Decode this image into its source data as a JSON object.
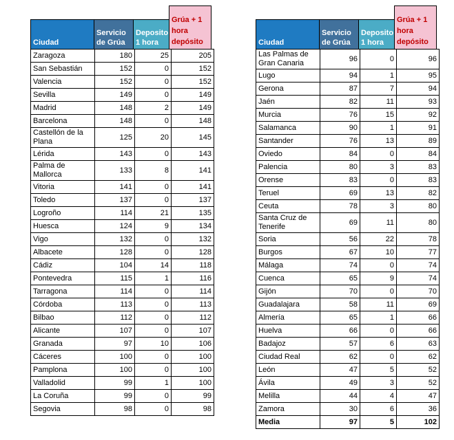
{
  "colors": {
    "blue": "#1F7BC2",
    "steel": "#41719C",
    "teal": "#4BACC6",
    "pink": "#F5C3D3",
    "red": "#C00000"
  },
  "chart_data": [
    {
      "type": "table",
      "columns": [
        "Ciudad",
        "Servicio de Grúa",
        "Deposito 1 hora",
        "Grúa + 1 hora depósito"
      ],
      "rows": [
        {
          "city": "Zaragoza",
          "servicio": 180,
          "deposito": 25,
          "total": 205
        },
        {
          "city": "San Sebastián",
          "servicio": 152,
          "deposito": 0,
          "total": 152
        },
        {
          "city": "Valencia",
          "servicio": 152,
          "deposito": 0,
          "total": 152
        },
        {
          "city": "Sevilla",
          "servicio": 149,
          "deposito": 0,
          "total": 149
        },
        {
          "city": "Madrid",
          "servicio": 148,
          "deposito": 2,
          "total": 149
        },
        {
          "city": "Barcelona",
          "servicio": 148,
          "deposito": 0,
          "total": 148
        },
        {
          "city": "Castellón de la Plana",
          "servicio": 125,
          "deposito": 20,
          "total": 145
        },
        {
          "city": "Lérida",
          "servicio": 143,
          "deposito": 0,
          "total": 143
        },
        {
          "city": "Palma de Mallorca",
          "servicio": 133,
          "deposito": 8,
          "total": 141
        },
        {
          "city": "Vitoria",
          "servicio": 141,
          "deposito": 0,
          "total": 141
        },
        {
          "city": "Toledo",
          "servicio": 137,
          "deposito": 0,
          "total": 137
        },
        {
          "city": "Logroño",
          "servicio": 114,
          "deposito": 21,
          "total": 135
        },
        {
          "city": "Huesca",
          "servicio": 124,
          "deposito": 9,
          "total": 134
        },
        {
          "city": "Vigo",
          "servicio": 132,
          "deposito": 0,
          "total": 132
        },
        {
          "city": "Albacete",
          "servicio": 128,
          "deposito": 0,
          "total": 128
        },
        {
          "city": "Cádiz",
          "servicio": 104,
          "deposito": 14,
          "total": 118
        },
        {
          "city": "Pontevedra",
          "servicio": 115,
          "deposito": 1,
          "total": 116
        },
        {
          "city": "Tarragona",
          "servicio": 114,
          "deposito": 0,
          "total": 114
        },
        {
          "city": "Córdoba",
          "servicio": 113,
          "deposito": 0,
          "total": 113
        },
        {
          "city": "Bilbao",
          "servicio": 112,
          "deposito": 0,
          "total": 112
        },
        {
          "city": "Alicante",
          "servicio": 107,
          "deposito": 0,
          "total": 107
        },
        {
          "city": "Granada",
          "servicio": 97,
          "deposito": 10,
          "total": 106
        },
        {
          "city": "Cáceres",
          "servicio": 100,
          "deposito": 0,
          "total": 100
        },
        {
          "city": "Pamplona",
          "servicio": 100,
          "deposito": 0,
          "total": 100
        },
        {
          "city": "Valladolid",
          "servicio": 99,
          "deposito": 1,
          "total": 100
        },
        {
          "city": "La Coruña",
          "servicio": 99,
          "deposito": 0,
          "total": 99
        },
        {
          "city": "Segovia",
          "servicio": 98,
          "deposito": 0,
          "total": 98
        }
      ]
    },
    {
      "type": "table",
      "columns": [
        "Ciudad",
        "Servicio de Grúa",
        "Deposito 1 hora",
        "Grúa + 1 hora depósito"
      ],
      "rows": [
        {
          "city": "Las Palmas de Gran Canaria",
          "servicio": 96,
          "deposito": 0,
          "total": 96
        },
        {
          "city": "Lugo",
          "servicio": 94,
          "deposito": 1,
          "total": 95
        },
        {
          "city": "Gerona",
          "servicio": 87,
          "deposito": 7,
          "total": 94
        },
        {
          "city": "Jaén",
          "servicio": 82,
          "deposito": 11,
          "total": 93
        },
        {
          "city": "Murcia",
          "servicio": 76,
          "deposito": 15,
          "total": 92
        },
        {
          "city": "Salamanca",
          "servicio": 90,
          "deposito": 1,
          "total": 91
        },
        {
          "city": "Santander",
          "servicio": 76,
          "deposito": 13,
          "total": 89
        },
        {
          "city": "Oviedo",
          "servicio": 84,
          "deposito": 0,
          "total": 84
        },
        {
          "city": "Palencia",
          "servicio": 80,
          "deposito": 3,
          "total": 83
        },
        {
          "city": "Orense",
          "servicio": 83,
          "deposito": 0,
          "total": 83
        },
        {
          "city": "Teruel",
          "servicio": 69,
          "deposito": 13,
          "total": 82
        },
        {
          "city": "Ceuta",
          "servicio": 78,
          "deposito": 3,
          "total": 80
        },
        {
          "city": "Santa Cruz de Tenerife",
          "servicio": 69,
          "deposito": 11,
          "total": 80
        },
        {
          "city": "Soria",
          "servicio": 56,
          "deposito": 22,
          "total": 78
        },
        {
          "city": "Burgos",
          "servicio": 67,
          "deposito": 10,
          "total": 77
        },
        {
          "city": "Málaga",
          "servicio": 74,
          "deposito": 0,
          "total": 74
        },
        {
          "city": "Cuenca",
          "servicio": 65,
          "deposito": 9,
          "total": 74
        },
        {
          "city": "Gijón",
          "servicio": 70,
          "deposito": 0,
          "total": 70
        },
        {
          "city": "Guadalajara",
          "servicio": 58,
          "deposito": 11,
          "total": 69
        },
        {
          "city": "Almería",
          "servicio": 65,
          "deposito": 1,
          "total": 66
        },
        {
          "city": "Huelva",
          "servicio": 66,
          "deposito": 0,
          "total": 66
        },
        {
          "city": "Badajoz",
          "servicio": 57,
          "deposito": 6,
          "total": 63
        },
        {
          "city": "Ciudad Real",
          "servicio": 62,
          "deposito": 0,
          "total": 62
        },
        {
          "city": "León",
          "servicio": 47,
          "deposito": 5,
          "total": 52
        },
        {
          "city": "Ávila",
          "servicio": 49,
          "deposito": 3,
          "total": 52
        },
        {
          "city": "Melilla",
          "servicio": 44,
          "deposito": 4,
          "total": 47
        },
        {
          "city": "Zamora",
          "servicio": 30,
          "deposito": 6,
          "total": 36
        },
        {
          "city": "Media",
          "servicio": 97,
          "deposito": 5,
          "total": 102,
          "bold": true
        }
      ]
    }
  ]
}
